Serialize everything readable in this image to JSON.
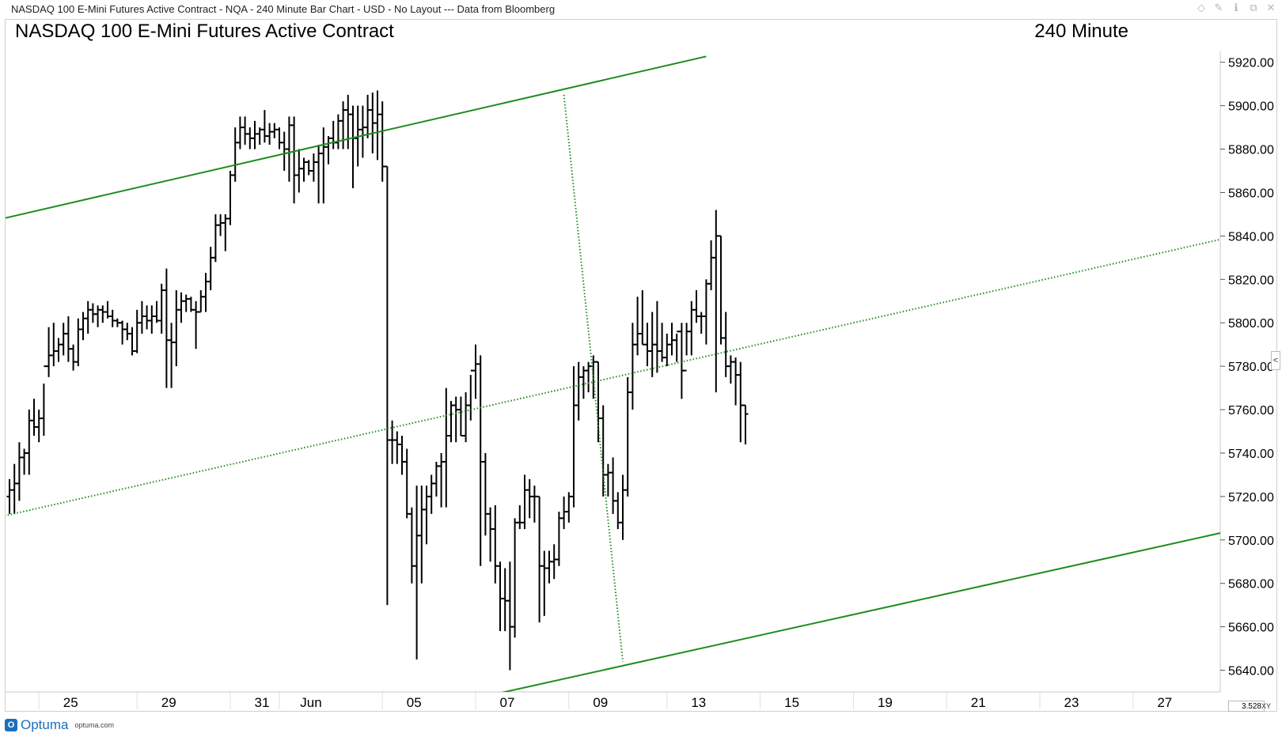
{
  "window": {
    "title": "NASDAQ 100 E-Mini Futures Active Contract - NQA - 240 Minute Bar Chart - USD - No Layout --- Data from Bloomberg",
    "icons": [
      "diamond-icon",
      "pin-icon",
      "info-icon",
      "restore-icon",
      "close-icon"
    ]
  },
  "header": {
    "title": "NASDAQ 100 E-Mini Futures Active Contract",
    "period": "240 Minute"
  },
  "footer": {
    "brand": "Optuma",
    "url": "optuma.com",
    "scale_readout": "3.528",
    "xy_label": "XY",
    "collapse_label": "<"
  },
  "colors": {
    "bars": "#000000",
    "channel": "#1e8c1e",
    "grid": "#e0e0e0"
  },
  "chart_data": {
    "type": "ohlc",
    "title": "NASDAQ 100 E-Mini Futures Active Contract",
    "timeframe": "240 Minute",
    "ylim": [
      5630,
      5925
    ],
    "y_ticks": [
      "5920.00",
      "5900.00",
      "5880.00",
      "5860.00",
      "5840.00",
      "5820.00",
      "5800.00",
      "5780.00",
      "5760.00",
      "5740.00",
      "5720.00",
      "5700.00",
      "5680.00",
      "5660.00",
      "5640.00"
    ],
    "x_tick_labels": [
      "25",
      "29",
      "31",
      "Jun",
      "05",
      "07",
      "09",
      "13",
      "15",
      "19",
      "21",
      "23",
      "27"
    ],
    "x_tick_bar_index": [
      6,
      26,
      45,
      55,
      76,
      95,
      114,
      134,
      153,
      172,
      191,
      210,
      229
    ],
    "bars": [
      [
        5720,
        5728,
        5712,
        5723
      ],
      [
        5723,
        5735,
        5712,
        5726
      ],
      [
        5726,
        5745,
        5718,
        5738
      ],
      [
        5738,
        5742,
        5730,
        5740
      ],
      [
        5740,
        5760,
        5730,
        5755
      ],
      [
        5755,
        5765,
        5748,
        5752
      ],
      [
        5752,
        5760,
        5745,
        5756
      ],
      [
        5756,
        5772,
        5748,
        5780
      ],
      [
        5780,
        5798,
        5775,
        5785
      ],
      [
        5785,
        5800,
        5780,
        5787
      ],
      [
        5787,
        5793,
        5782,
        5790
      ],
      [
        5790,
        5800,
        5785,
        5795
      ],
      [
        5795,
        5803,
        5782,
        5788
      ],
      [
        5788,
        5790,
        5778,
        5782
      ],
      [
        5782,
        5802,
        5780,
        5797
      ],
      [
        5797,
        5805,
        5792,
        5802
      ],
      [
        5802,
        5810,
        5795,
        5806
      ],
      [
        5806,
        5809,
        5800,
        5804
      ],
      [
        5804,
        5808,
        5798,
        5806
      ],
      [
        5806,
        5808,
        5800,
        5805
      ],
      [
        5805,
        5810,
        5802,
        5803
      ],
      [
        5803,
        5806,
        5798,
        5801
      ],
      [
        5801,
        5802,
        5798,
        5800
      ],
      [
        5800,
        5801,
        5790,
        5797
      ],
      [
        5797,
        5800,
        5792,
        5795
      ],
      [
        5795,
        5798,
        5785,
        5787
      ],
      [
        5787,
        5806,
        5786,
        5800
      ],
      [
        5800,
        5810,
        5795,
        5803
      ],
      [
        5803,
        5808,
        5797,
        5801
      ],
      [
        5801,
        5808,
        5795,
        5803
      ],
      [
        5803,
        5810,
        5800,
        5801
      ],
      [
        5801,
        5818,
        5795,
        5815
      ],
      [
        5815,
        5825,
        5770,
        5792
      ],
      [
        5792,
        5800,
        5770,
        5791
      ],
      [
        5791,
        5815,
        5780,
        5806
      ],
      [
        5806,
        5814,
        5800,
        5810
      ],
      [
        5810,
        5813,
        5805,
        5811
      ],
      [
        5811,
        5812,
        5805,
        5806
      ],
      [
        5806,
        5810,
        5788,
        5805
      ],
      [
        5805,
        5815,
        5805,
        5812
      ],
      [
        5812,
        5823,
        5805,
        5819
      ],
      [
        5819,
        5835,
        5815,
        5830
      ],
      [
        5830,
        5850,
        5828,
        5845
      ],
      [
        5845,
        5850,
        5840,
        5846
      ],
      [
        5846,
        5850,
        5833,
        5848
      ],
      [
        5848,
        5870,
        5845,
        5868
      ],
      [
        5868,
        5890,
        5865,
        5883
      ],
      [
        5883,
        5895,
        5880,
        5890
      ],
      [
        5890,
        5895,
        5882,
        5887
      ],
      [
        5887,
        5890,
        5880,
        5885
      ],
      [
        5885,
        5893,
        5880,
        5887
      ],
      [
        5887,
        5890,
        5882,
        5889
      ],
      [
        5889,
        5898,
        5883,
        5886
      ],
      [
        5886,
        5892,
        5882,
        5888
      ],
      [
        5888,
        5892,
        5885,
        5889
      ],
      [
        5889,
        5890,
        5880,
        5883
      ],
      [
        5883,
        5888,
        5870,
        5880
      ],
      [
        5880,
        5895,
        5865,
        5891
      ],
      [
        5891,
        5895,
        5855,
        5868
      ],
      [
        5868,
        5880,
        5860,
        5871
      ],
      [
        5871,
        5876,
        5865,
        5874
      ],
      [
        5874,
        5875,
        5868,
        5870
      ],
      [
        5870,
        5878,
        5865,
        5874
      ],
      [
        5874,
        5882,
        5855,
        5878
      ],
      [
        5878,
        5890,
        5855,
        5881
      ],
      [
        5881,
        5886,
        5873,
        5885
      ],
      [
        5885,
        5893,
        5880,
        5883
      ],
      [
        5883,
        5896,
        5880,
        5893
      ],
      [
        5893,
        5902,
        5880,
        5898
      ],
      [
        5898,
        5905,
        5880,
        5896
      ],
      [
        5896,
        5900,
        5862,
        5885
      ],
      [
        5885,
        5900,
        5872,
        5889
      ],
      [
        5889,
        5900,
        5876,
        5890
      ],
      [
        5890,
        5905,
        5885,
        5898
      ],
      [
        5898,
        5906,
        5878,
        5892
      ],
      [
        5892,
        5907,
        5875,
        5896
      ],
      [
        5896,
        5902,
        5865,
        5872
      ],
      [
        5872,
        5872,
        5670,
        5746
      ],
      [
        5746,
        5755,
        5735,
        5746
      ],
      [
        5746,
        5750,
        5735,
        5744
      ],
      [
        5744,
        5748,
        5730,
        5736
      ],
      [
        5736,
        5742,
        5710,
        5712
      ],
      [
        5712,
        5715,
        5680,
        5688
      ],
      [
        5688,
        5725,
        5645,
        5702
      ],
      [
        5702,
        5725,
        5680,
        5714
      ],
      [
        5714,
        5725,
        5698,
        5720
      ],
      [
        5720,
        5730,
        5712,
        5726
      ],
      [
        5726,
        5736,
        5720,
        5734
      ],
      [
        5734,
        5740,
        5715,
        5736
      ],
      [
        5736,
        5770,
        5715,
        5748
      ],
      [
        5748,
        5764,
        5745,
        5762
      ],
      [
        5762,
        5766,
        5745,
        5760
      ],
      [
        5760,
        5766,
        5748,
        5748
      ],
      [
        5748,
        5768,
        5745,
        5762
      ],
      [
        5762,
        5776,
        5755,
        5778
      ],
      [
        5778,
        5790,
        5765,
        5781
      ],
      [
        5781,
        5785,
        5688,
        5736
      ],
      [
        5736,
        5740,
        5702,
        5712
      ],
      [
        5712,
        5715,
        5690,
        5705
      ],
      [
        5705,
        5716,
        5680,
        5688
      ],
      [
        5688,
        5690,
        5658,
        5673
      ],
      [
        5673,
        5687,
        5658,
        5672
      ],
      [
        5672,
        5690,
        5640,
        5660
      ],
      [
        5660,
        5710,
        5655,
        5708
      ],
      [
        5708,
        5716,
        5705,
        5708
      ],
      [
        5708,
        5730,
        5705,
        5723
      ],
      [
        5723,
        5728,
        5710,
        5720
      ],
      [
        5720,
        5725,
        5708,
        5720
      ],
      [
        5720,
        5720,
        5662,
        5688
      ],
      [
        5688,
        5695,
        5665,
        5687
      ],
      [
        5687,
        5695,
        5680,
        5690
      ],
      [
        5690,
        5698,
        5682,
        5691
      ],
      [
        5691,
        5713,
        5688,
        5710
      ],
      [
        5710,
        5720,
        5705,
        5713
      ],
      [
        5713,
        5722,
        5708,
        5720
      ],
      [
        5720,
        5780,
        5715,
        5762
      ],
      [
        5762,
        5782,
        5755,
        5775
      ],
      [
        5775,
        5780,
        5765,
        5778
      ],
      [
        5778,
        5782,
        5768,
        5780
      ],
      [
        5780,
        5785,
        5765,
        5782
      ],
      [
        5782,
        5782,
        5745,
        5756
      ],
      [
        5756,
        5762,
        5720,
        5730
      ],
      [
        5730,
        5735,
        5720,
        5731
      ],
      [
        5731,
        5738,
        5712,
        5718
      ],
      [
        5718,
        5722,
        5705,
        5708
      ],
      [
        5708,
        5730,
        5700,
        5723
      ],
      [
        5723,
        5775,
        5720,
        5768
      ],
      [
        5768,
        5800,
        5760,
        5790
      ],
      [
        5790,
        5812,
        5785,
        5795
      ],
      [
        5795,
        5815,
        5790,
        5790
      ],
      [
        5790,
        5800,
        5780,
        5787
      ],
      [
        5787,
        5805,
        5775,
        5790
      ],
      [
        5790,
        5810,
        5777,
        5787
      ],
      [
        5787,
        5800,
        5782,
        5784
      ],
      [
        5784,
        5795,
        5780,
        5790
      ],
      [
        5790,
        5800,
        5785,
        5792
      ],
      [
        5792,
        5795,
        5782,
        5796
      ],
      [
        5796,
        5800,
        5765,
        5778
      ],
      [
        5778,
        5800,
        5785,
        5796
      ],
      [
        5796,
        5810,
        5785,
        5806
      ],
      [
        5806,
        5815,
        5800,
        5803
      ],
      [
        5803,
        5805,
        5795,
        5803
      ],
      [
        5803,
        5820,
        5790,
        5818
      ],
      [
        5818,
        5838,
        5815,
        5830
      ],
      [
        5830,
        5852,
        5768,
        5840
      ],
      [
        5840,
        5840,
        5790,
        5793
      ],
      [
        5793,
        5805,
        5775,
        5780
      ],
      [
        5780,
        5785,
        5772,
        5782
      ],
      [
        5782,
        5784,
        5762,
        5776
      ],
      [
        5776,
        5782,
        5745,
        5762
      ],
      [
        5762,
        5762,
        5744,
        5758
      ]
    ],
    "channel_lines": [
      {
        "style": "solid",
        "points": [
          [
            -1,
            5848.2
          ],
          [
            142,
            5922.7
          ]
        ]
      },
      {
        "style": "dotted",
        "points": [
          [
            -1,
            5711.1
          ],
          [
            253,
            5841.6
          ]
        ]
      },
      {
        "style": "solid",
        "points": [
          [
            94,
            5626.5
          ],
          [
            253,
            5706.3
          ]
        ]
      },
      {
        "style": "dotted",
        "points": [
          [
            113,
            5905.0
          ],
          [
            125,
            5644.0
          ]
        ]
      }
    ]
  }
}
